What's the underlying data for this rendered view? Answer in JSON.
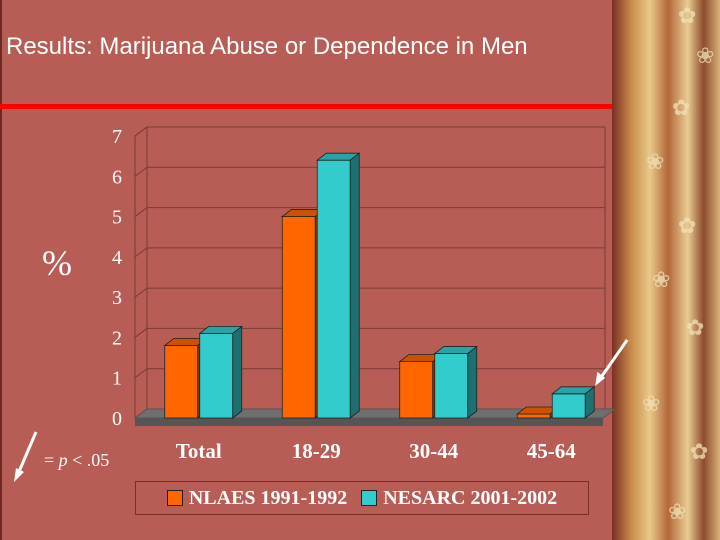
{
  "slide": {
    "title": "Results:  Marijuana Abuse or Dependence in Men",
    "y_unit": "%",
    "significance_note_prefix": "=",
    "significance_note_p": "p",
    "significance_note_rest": " < .05"
  },
  "colors": {
    "background": "#b85c56",
    "nlaes": "#ff6600",
    "nesarc": "#33cccc",
    "title_rule": "#ff0000",
    "plot_floor": "#6f6f6f"
  },
  "chart_data": {
    "type": "bar",
    "title": "",
    "xlabel": "",
    "ylabel": "%",
    "ylim": [
      0,
      7
    ],
    "yticks": [
      "0",
      "1",
      "2",
      "3",
      "4",
      "5",
      "6",
      "7"
    ],
    "categories": [
      "Total",
      "18-29",
      "30-44",
      "45-64"
    ],
    "series": [
      {
        "name": "NLAES 1991-1992",
        "color": "#ff6600",
        "values": [
          1.8,
          5.0,
          1.4,
          0.1
        ]
      },
      {
        "name": "NESARC 2001-2002",
        "color": "#33cccc",
        "values": [
          2.1,
          6.4,
          1.6,
          0.6
        ]
      }
    ],
    "grid": true,
    "legend_position": "bottom",
    "significant_marker": {
      "category": "45-64",
      "series": "NESARC 2001-2002"
    }
  }
}
